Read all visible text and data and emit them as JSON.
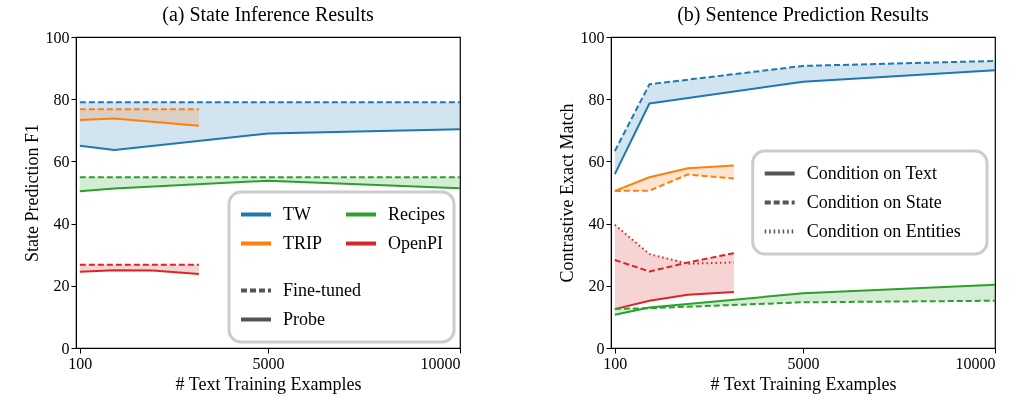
{
  "chart_data": [
    {
      "type": "line",
      "title": "(a) State Inference Results",
      "xlabel": "# Text Training Examples",
      "ylabel": "State Prediction F1",
      "xlim": [
        0,
        10000
      ],
      "xticks": [
        100,
        5000,
        10000
      ],
      "ylim": [
        0,
        100
      ],
      "yticks": [
        0,
        20,
        40,
        60,
        80,
        100
      ],
      "grid": false,
      "legend": "bottom right",
      "annotations": [
        "Fine-tuned",
        "Probe"
      ],
      "series": [
        {
          "name": "TW",
          "color": "#1f77b4",
          "line_style": "dashed",
          "x": [
            100,
            1000,
            5000,
            10000
          ],
          "values": [
            79,
            79,
            79,
            79
          ],
          "lower": [
            65,
            63.7,
            69,
            70.3
          ],
          "upper": [
            79,
            79,
            79,
            79
          ]
        },
        {
          "color": "#1f77b4",
          "line_style": "solid",
          "x": [
            100,
            1000,
            5000,
            10000
          ],
          "values": [
            65,
            63.7,
            69,
            70.3
          ]
        },
        {
          "name": "TRIP",
          "color": "#ff7f0e",
          "line_style": "dashed",
          "x": [
            100,
            1000,
            3200
          ],
          "values": [
            76.8,
            76.8,
            76.8
          ],
          "lower": [
            73.3,
            73.8,
            71.5
          ],
          "upper": [
            76.8,
            76.8,
            76.8
          ]
        },
        {
          "color": "#ff7f0e",
          "line_style": "solid",
          "x": [
            100,
            1000,
            3200
          ],
          "values": [
            73.3,
            73.8,
            71.5
          ]
        },
        {
          "name": "Recipes",
          "color": "#2ca02c",
          "line_style": "dashed",
          "x": [
            100,
            1000,
            5000,
            10000
          ],
          "values": [
            54.9,
            54.9,
            54.9,
            54.9
          ],
          "lower": [
            50.4,
            51.3,
            53.8,
            51.4
          ],
          "upper": [
            54.9,
            54.9,
            54.9,
            54.9
          ]
        },
        {
          "color": "#2ca02c",
          "line_style": "solid",
          "x": [
            100,
            1000,
            5000,
            10000
          ],
          "values": [
            50.4,
            51.3,
            53.8,
            51.4
          ]
        },
        {
          "name": "OpenPI",
          "color": "#d62728",
          "line_style": "dashed",
          "x": [
            100,
            1000,
            2000,
            3200
          ],
          "values": [
            26.8,
            26.8,
            26.8,
            26.8
          ],
          "lower": [
            24.5,
            25,
            24.9,
            23.8
          ],
          "upper": [
            26.8,
            26.8,
            26.8,
            26.8
          ]
        },
        {
          "color": "#d62728",
          "line_style": "solid",
          "x": [
            100,
            1000,
            2000,
            3200
          ],
          "values": [
            24.5,
            25,
            24.9,
            23.8
          ]
        }
      ]
    },
    {
      "type": "line",
      "title": "(b) Sentence Prediction Results",
      "xlabel": "# Text Training Examples",
      "ylabel": "Contrastive Exact Match",
      "xlim": [
        0,
        10000
      ],
      "xticks": [
        100,
        5000,
        10000
      ],
      "ylim": [
        0,
        100
      ],
      "yticks": [
        0,
        20,
        40,
        60,
        80,
        100
      ],
      "grid": false,
      "legend": "right",
      "annotations": [
        "Condition on Text",
        "Condition on State",
        "Condition on Entities"
      ],
      "series": [
        {
          "color": "#1f77b4",
          "line_style": "solid",
          "x": [
            100,
            1000,
            5000,
            10000
          ],
          "values": [
            55.9,
            78.6,
            85.6,
            89.3
          ],
          "lower": [
            55.9,
            78.6,
            85.6,
            89.3
          ],
          "upper": [
            63.3,
            84.8,
            90.7,
            92.3
          ]
        },
        {
          "color": "#1f77b4",
          "line_style": "dashed",
          "x": [
            100,
            1000,
            5000,
            10000
          ],
          "values": [
            63.3,
            84.8,
            90.7,
            92.3
          ]
        },
        {
          "color": "#ff7f0e",
          "line_style": "solid",
          "x": [
            100,
            1000,
            2000,
            3200
          ],
          "values": [
            50.5,
            54.9,
            57.8,
            58.7
          ],
          "lower": [
            50.5,
            50.6,
            55.8,
            54.5
          ],
          "upper": [
            50.5,
            54.9,
            57.8,
            58.7
          ]
        },
        {
          "color": "#ff7f0e",
          "line_style": "dashed",
          "x": [
            100,
            1000,
            2000,
            3200
          ],
          "values": [
            50.5,
            50.6,
            55.8,
            54.5
          ]
        },
        {
          "color": "#d62728",
          "line_style": "solid",
          "x": [
            100,
            1000,
            2000,
            3200
          ],
          "values": [
            12.5,
            15.2,
            17.1,
            18.0
          ],
          "lower": [
            12.5,
            15.2,
            17.1,
            18.0
          ],
          "upper": [
            39.6,
            30.2,
            27.5,
            30.5
          ]
        },
        {
          "color": "#d62728",
          "line_style": "dashed",
          "x": [
            100,
            1000,
            2000,
            3200
          ],
          "values": [
            28.3,
            24.6,
            27.5,
            30.5
          ]
        },
        {
          "color": "#d62728",
          "line_style": "dotted",
          "x": [
            100,
            1000,
            2000,
            3200
          ],
          "values": [
            39.6,
            30.2,
            27.1,
            27.5
          ]
        },
        {
          "color": "#2ca02c",
          "line_style": "solid",
          "x": [
            100,
            1000,
            5000,
            10000
          ],
          "values": [
            10.7,
            13.0,
            17.6,
            20.3
          ],
          "lower": [
            10.7,
            12.8,
            14.7,
            15.2
          ],
          "upper": [
            12.6,
            13.0,
            17.6,
            20.3
          ]
        },
        {
          "color": "#2ca02c",
          "line_style": "dashed",
          "x": [
            100,
            1000,
            5000,
            10000
          ],
          "values": [
            12.6,
            12.8,
            14.7,
            15.2
          ]
        }
      ]
    }
  ]
}
